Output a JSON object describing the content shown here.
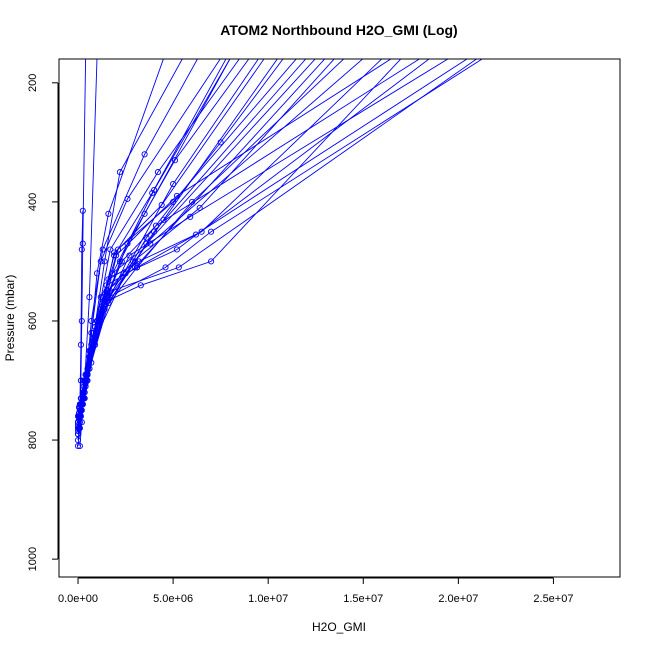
{
  "chart_data": {
    "type": "line",
    "title": "ATOM2 Northbound H2O_GMI (Log)",
    "xlabel": "H2O_GMI",
    "ylabel": "Pressure (mbar)",
    "xlim": [
      -1000000,
      28500000
    ],
    "ylim": [
      1030,
      160
    ],
    "y_reversed": true,
    "grid": false,
    "legend": "none",
    "color": "#0000ff",
    "x_ticks": [
      {
        "value": 0,
        "label": "0.0e+00"
      },
      {
        "value": 5000000,
        "label": "5.0e+06"
      },
      {
        "value": 10000000,
        "label": "1.0e+07"
      },
      {
        "value": 15000000,
        "label": "1.5e+07"
      },
      {
        "value": 20000000,
        "label": "2.0e+07"
      },
      {
        "value": 25000000,
        "label": "2.5e+07"
      }
    ],
    "y_ticks": [
      {
        "value": 200,
        "label": "200"
      },
      {
        "value": 400,
        "label": "400"
      },
      {
        "value": 600,
        "label": "600"
      },
      {
        "value": 800,
        "label": "800"
      },
      {
        "value": 1000,
        "label": "1000"
      }
    ],
    "series": [
      {
        "x": [
          100000,
          200000,
          350000,
          600000,
          1000000
        ],
        "y": [
          810,
          770,
          700,
          560,
          159
        ]
      },
      {
        "x": [
          0,
          100000,
          250000,
          450000,
          700000,
          1300000,
          3500000,
          6300000
        ],
        "y": [
          790,
          770,
          740,
          690,
          600,
          480,
          320,
          159
        ]
      },
      {
        "x": [
          0,
          150000,
          300000,
          650000,
          1200000,
          4000000,
          8000000
        ],
        "y": [
          780,
          760,
          730,
          650,
          560,
          380,
          159
        ]
      },
      {
        "x": [
          50000,
          150000,
          400000,
          900000,
          2600000,
          5100000,
          9000000
        ],
        "y": [
          760,
          740,
          690,
          610,
          470,
          330,
          159
        ]
      },
      {
        "x": [
          0,
          200000,
          500000,
          1100000,
          3600000,
          7500000,
          10800000
        ],
        "y": [
          770,
          750,
          700,
          600,
          460,
          300,
          159
        ]
      },
      {
        "x": [
          100000,
          300000,
          700000,
          1600000,
          4000000,
          12000000
        ],
        "y": [
          760,
          730,
          670,
          570,
          450,
          159
        ]
      },
      {
        "x": [
          50000,
          250000,
          600000,
          1500000,
          3100000,
          6000000,
          14000000
        ],
        "y": [
          745,
          720,
          650,
          540,
          510,
          400,
          159
        ]
      },
      {
        "x": [
          0,
          200000,
          800000,
          1800000,
          3800000,
          15000000
        ],
        "y": [
          760,
          740,
          640,
          520,
          470,
          159
        ]
      },
      {
        "x": [
          100000,
          400000,
          1000000,
          2000000,
          5200000,
          16500000
        ],
        "y": [
          750,
          700,
          600,
          490,
          390,
          159
        ]
      },
      {
        "x": [
          0,
          300000,
          900000,
          2300000,
          4100000,
          18000000
        ],
        "y": [
          770,
          730,
          610,
          500,
          440,
          159
        ]
      },
      {
        "x": [
          50000,
          350000,
          1100000,
          2700000,
          5900000,
          19500000
        ],
        "y": [
          760,
          720,
          600,
          490,
          425,
          159
        ]
      },
      {
        "x": [
          100000,
          450000,
          1400000,
          3100000,
          6200000,
          20500000
        ],
        "y": [
          740,
          700,
          580,
          510,
          455,
          159
        ]
      },
      {
        "x": [
          0,
          500000,
          1600000,
          4600000,
          7000000,
          21300000
        ],
        "y": [
          770,
          690,
          560,
          510,
          450,
          159
        ]
      },
      {
        "x": [
          150000,
          600000,
          1700000,
          5300000,
          21000000
        ],
        "y": [
          730,
          680,
          550,
          510,
          159
        ]
      },
      {
        "x": [
          100000,
          500000,
          1300000,
          3300000,
          7000000,
          17000000
        ],
        "y": [
          750,
          690,
          570,
          540,
          500,
          159
        ]
      },
      {
        "x": [
          50000,
          300000,
          800000,
          1500000,
          3000000,
          13000000
        ],
        "y": [
          755,
          700,
          620,
          550,
          510,
          159
        ]
      },
      {
        "x": [
          0,
          150000,
          400000,
          1200000,
          2400000,
          5000000,
          9500000
        ],
        "y": [
          780,
          750,
          690,
          580,
          520,
          370,
          159
        ]
      },
      {
        "x": [
          0,
          100000,
          300000,
          800000,
          1700000,
          4200000,
          8500000
        ],
        "y": [
          800,
          760,
          720,
          630,
          480,
          350,
          159
        ]
      },
      {
        "x": [
          0,
          100000,
          250000,
          700000,
          1400000,
          2200000,
          5500000
        ],
        "y": [
          810,
          780,
          740,
          650,
          500,
          350,
          159
        ]
      },
      {
        "x": [
          150000,
          300000,
          700000,
          1200000,
          2600000,
          7500000
        ],
        "y": [
          750,
          700,
          620,
          500,
          395,
          159
        ]
      },
      {
        "x": [
          50000,
          200000,
          600000,
          1000000,
          1600000,
          4500000
        ],
        "y": [
          780,
          740,
          660,
          520,
          420,
          159
        ]
      },
      {
        "x": [
          100000,
          250000,
          500000,
          1000000,
          3600000,
          12500000
        ],
        "y": [
          760,
          730,
          680,
          600,
          470,
          159
        ]
      },
      {
        "x": [
          200000,
          400000,
          900000,
          2500000,
          5200000,
          18500000
        ],
        "y": [
          740,
          710,
          630,
          520,
          480,
          159
        ]
      },
      {
        "x": [
          150000,
          500000,
          1200000,
          3000000,
          4500000,
          10500000
        ],
        "y": [
          730,
          690,
          580,
          500,
          430,
          159
        ]
      },
      {
        "x": [
          100000,
          300000,
          1000000,
          1900000,
          3900000,
          7800000
        ],
        "y": [
          750,
          710,
          600,
          490,
          385,
          159
        ]
      },
      {
        "x": [
          0,
          100000,
          150000,
          200000,
          250000,
          400000
        ],
        "y": [
          790,
          760,
          700,
          600,
          470,
          159
        ]
      },
      {
        "x": [
          100000,
          150000,
          200000,
          250000
        ],
        "y": [
          740,
          640,
          480,
          415
        ]
      },
      {
        "x": [
          0,
          200000,
          400000,
          1200000,
          2200000,
          3500000,
          8000000
        ],
        "y": [
          775,
          740,
          700,
          600,
          500,
          420,
          159
        ]
      },
      {
        "x": [
          50000,
          250000,
          700000,
          1600000,
          3200000,
          6500000,
          16000000
        ],
        "y": [
          765,
          725,
          640,
          530,
          500,
          450,
          159
        ]
      },
      {
        "x": [
          100000,
          400000,
          1100000,
          1900000,
          5000000,
          11500000
        ],
        "y": [
          745,
          705,
          610,
          485,
          400,
          159
        ]
      },
      {
        "x": [
          0,
          350000,
          900000,
          1500000,
          2100000,
          4400000,
          9800000
        ],
        "y": [
          785,
          730,
          640,
          560,
          480,
          405,
          159
        ]
      },
      {
        "x": [
          50000,
          600000,
          1300000,
          2900000,
          6400000,
          13500000
        ],
        "y": [
          755,
          680,
          560,
          500,
          410,
          159
        ]
      }
    ]
  }
}
